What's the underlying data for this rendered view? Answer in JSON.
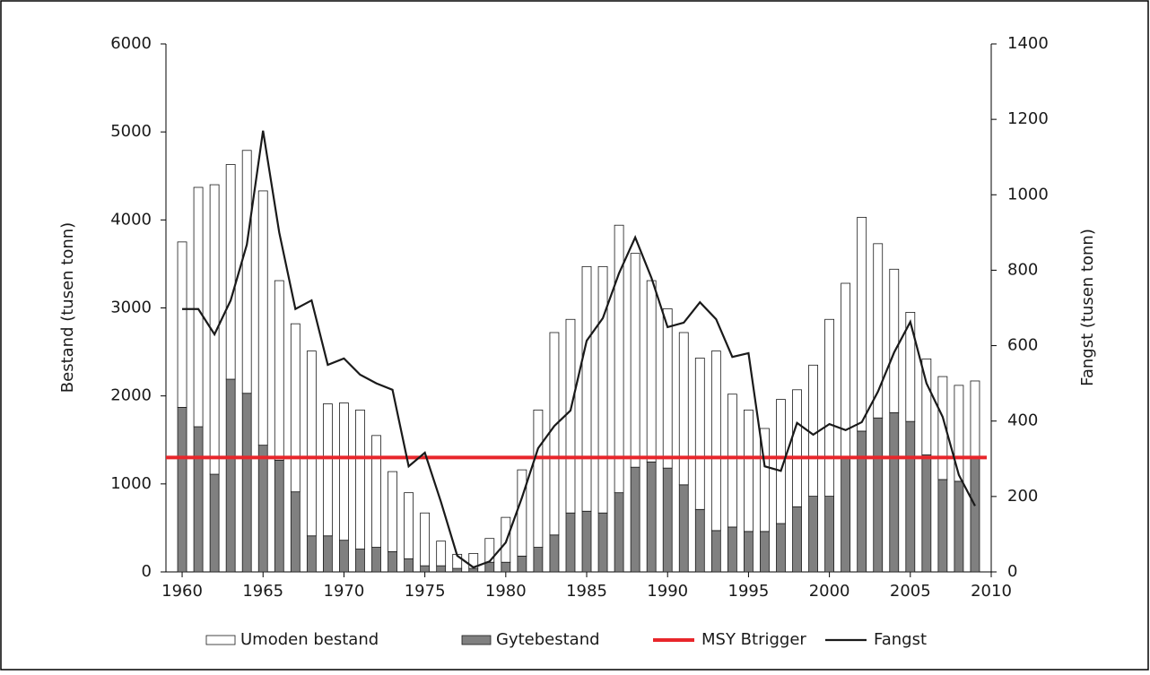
{
  "chart_data": {
    "type": "bar-line",
    "x": [
      1960,
      1961,
      1962,
      1963,
      1964,
      1965,
      1966,
      1967,
      1968,
      1969,
      1970,
      1971,
      1972,
      1973,
      1974,
      1975,
      1976,
      1977,
      1978,
      1979,
      1980,
      1981,
      1982,
      1983,
      1984,
      1985,
      1986,
      1987,
      1988,
      1989,
      1990,
      1991,
      1992,
      1993,
      1994,
      1995,
      1996,
      1997,
      1998,
      1999,
      2000,
      2001,
      2002,
      2003,
      2004,
      2005,
      2006,
      2007,
      2008,
      2009
    ],
    "xlim": [
      1959,
      2010
    ],
    "xticks": [
      1960,
      1965,
      1970,
      1975,
      1980,
      1985,
      1990,
      1995,
      2000,
      2005,
      2010
    ],
    "ylim": [
      0,
      6000
    ],
    "yticks": [
      0,
      1000,
      2000,
      3000,
      4000,
      5000,
      6000
    ],
    "y2lim": [
      0,
      1400
    ],
    "y2ticks": [
      0,
      200,
      400,
      600,
      800,
      1000,
      1200,
      1400
    ],
    "ylabel": "Bestand (tusen tonn)",
    "y2label": "Fangst (tusen tonn)",
    "series": [
      {
        "name": "Umoden bestand",
        "color": "#ffffff",
        "stack": true,
        "values": [
          1880,
          2720,
          3290,
          2440,
          2760,
          2890,
          2040,
          1910,
          2100,
          1500,
          1560,
          1580,
          1270,
          910,
          750,
          600,
          280,
          160,
          170,
          270,
          510,
          980,
          1560,
          2300,
          2200,
          2780,
          2800,
          3040,
          2430,
          2060,
          1810,
          1730,
          1720,
          2040,
          1510,
          1380,
          1170,
          1410,
          1330,
          1490,
          2010,
          1980,
          2430,
          1980,
          1630,
          1240,
          1090,
          1170,
          1090,
          870
        ]
      },
      {
        "name": "Gytebestand",
        "color": "#808080",
        "stack": true,
        "values": [
          1870,
          1650,
          1110,
          2190,
          2030,
          1440,
          1270,
          910,
          410,
          410,
          360,
          260,
          280,
          230,
          150,
          70,
          70,
          40,
          40,
          110,
          110,
          180,
          280,
          420,
          670,
          690,
          670,
          900,
          1190,
          1250,
          1180,
          990,
          710,
          470,
          510,
          460,
          460,
          550,
          740,
          860,
          860,
          1300,
          1600,
          1750,
          1810,
          1710,
          1330,
          1050,
          1030,
          1300
        ]
      },
      {
        "name": "MSY Btrigger",
        "color": "#e8262b",
        "value": 1300
      },
      {
        "name": "Fangst",
        "color": "#1a1a1a",
        "axis": "y2",
        "values": [
          697,
          697,
          630,
          720,
          868,
          1170,
          900,
          697,
          720,
          549,
          566,
          523,
          500,
          483,
          280,
          316,
          185,
          43,
          12,
          28,
          78,
          197,
          328,
          387,
          428,
          613,
          673,
          792,
          887,
          780,
          649,
          661,
          715,
          670,
          570,
          580,
          280,
          268,
          395,
          364,
          392,
          376,
          397,
          478,
          582,
          663,
          500,
          411,
          257,
          175
        ]
      }
    ]
  }
}
